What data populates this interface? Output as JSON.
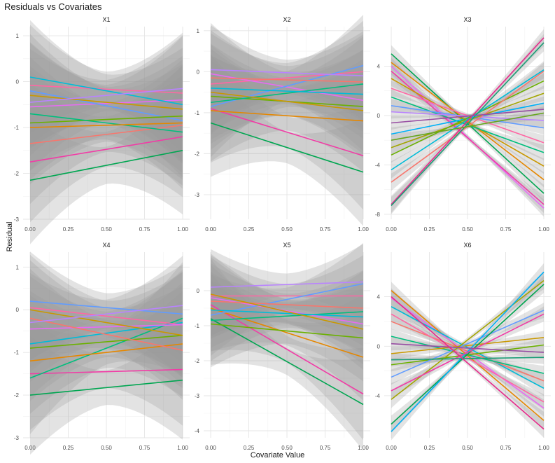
{
  "chart_data": {
    "type": "line",
    "title": "Residuals vs Covariates",
    "xlabel": "Covariate Value",
    "ylabel": "Residual",
    "colors": [
      "#F8766D",
      "#E58700",
      "#C99800",
      "#A3A500",
      "#6BB100",
      "#00BA38",
      "#00BF7D",
      "#00C0AF",
      "#00BCD8",
      "#00B0F6",
      "#619CFF",
      "#B983FF",
      "#E76BF3",
      "#FD61D1",
      "#FF67A4",
      "#4DAF4A",
      "#984EA3",
      "#E7298A",
      "#1B9E77",
      "#66A61E"
    ],
    "panels": [
      {
        "label": "X1",
        "xlim": [
          0,
          1
        ],
        "ylim": [
          -3.0,
          1.2
        ],
        "xticks": [
          0,
          0.25,
          0.5,
          0.75,
          1
        ],
        "xtick_labels": [
          "0.00",
          "0.25",
          "0.50",
          "0.75",
          "1.00"
        ],
        "yticks": [
          1,
          0,
          -1,
          -2,
          -3
        ],
        "ytick_labels": [
          "1",
          "0",
          "-1",
          "-2",
          "-3"
        ],
        "lines": [
          {
            "color": "#00A651",
            "y0": -2.15,
            "y1": -1.5,
            "band": 0.9
          },
          {
            "color": "#F13CA6",
            "y0": -1.75,
            "y1": -1.2,
            "band": 0.85
          },
          {
            "color": "#E76BF3",
            "y0": -0.55,
            "y1": -0.4,
            "band": 0.9
          },
          {
            "color": "#F8766D",
            "y0": -1.35,
            "y1": -0.95,
            "band": 0.85
          },
          {
            "color": "#FF67A4",
            "y0": -0.08,
            "y1": -0.25,
            "band": 0.85
          },
          {
            "color": "#619CFF",
            "y0": -0.2,
            "y1": -0.85,
            "band": 0.8
          },
          {
            "color": "#6BB100",
            "y0": -0.9,
            "y1": -0.75,
            "band": 0.8
          },
          {
            "color": "#00BCD8",
            "y0": 0.1,
            "y1": -0.5,
            "band": 0.8
          },
          {
            "color": "#C99800",
            "y0": -0.3,
            "y1": -0.6,
            "band": 0.75
          },
          {
            "color": "#00BF7D",
            "y0": -0.7,
            "y1": -1.1,
            "band": 0.8
          },
          {
            "color": "#B983FF",
            "y0": -0.45,
            "y1": -0.15,
            "band": 0.75
          },
          {
            "color": "#E58700",
            "y0": -1.0,
            "y1": -0.9,
            "band": 0.8
          }
        ]
      },
      {
        "label": "X2",
        "xlim": [
          0,
          1
        ],
        "ylim": [
          -3.6,
          1.1
        ],
        "xticks": [
          0,
          0.25,
          0.5,
          0.75,
          1
        ],
        "xtick_labels": [
          "0.00",
          "0.25",
          "0.50",
          "0.75",
          "1.00"
        ],
        "yticks": [
          1,
          0,
          -1,
          -2,
          -3
        ],
        "ytick_labels": [
          "1",
          "0",
          "-1",
          "-2",
          "-3"
        ],
        "lines": [
          {
            "color": "#00A651",
            "y0": -1.25,
            "y1": -2.45,
            "band": 0.85
          },
          {
            "color": "#F13CA6",
            "y0": -0.9,
            "y1": -2.05,
            "band": 0.85
          },
          {
            "color": "#FF67A4",
            "y0": -0.3,
            "y1": 0.0,
            "band": 0.8
          },
          {
            "color": "#E76BF3",
            "y0": -0.05,
            "y1": -0.7,
            "band": 0.8
          },
          {
            "color": "#619CFF",
            "y0": -0.85,
            "y1": 0.15,
            "band": 0.8
          },
          {
            "color": "#E58700",
            "y0": -0.95,
            "y1": -1.2,
            "band": 0.8
          },
          {
            "color": "#6BB100",
            "y0": -0.6,
            "y1": -0.85,
            "band": 0.75
          },
          {
            "color": "#00BF7D",
            "y0": -0.75,
            "y1": -0.3,
            "band": 0.75
          },
          {
            "color": "#F8766D",
            "y0": -0.15,
            "y1": -0.25,
            "band": 0.75
          },
          {
            "color": "#00BCD8",
            "y0": -0.4,
            "y1": -0.55,
            "band": 0.7
          },
          {
            "color": "#C99800",
            "y0": -0.5,
            "y1": -0.95,
            "band": 0.75
          },
          {
            "color": "#B983FF",
            "y0": 0.05,
            "y1": -0.1,
            "band": 0.7
          }
        ]
      },
      {
        "label": "X3",
        "xlim": [
          0,
          1
        ],
        "ylim": [
          -8.4,
          7.2
        ],
        "xticks": [
          0,
          0.25,
          0.5,
          0.75,
          1
        ],
        "xtick_labels": [
          "0.00",
          "0.25",
          "0.50",
          "0.75",
          "1.00"
        ],
        "yticks": [
          4,
          0,
          -4,
          -8
        ],
        "ytick_labels": [
          "4",
          "0",
          "-4",
          "-8"
        ],
        "lines": [
          {
            "color": "#00A651",
            "y0": 5.0,
            "y1": -6.3,
            "band": 0.45
          },
          {
            "color": "#E58700",
            "y0": 4.3,
            "y1": -5.2,
            "band": 0.4
          },
          {
            "color": "#E76BF3",
            "y0": 4.0,
            "y1": -7.5,
            "band": 0.45
          },
          {
            "color": "#F13CA6",
            "y0": 3.6,
            "y1": -7.2,
            "band": 0.45
          },
          {
            "color": "#C99800",
            "y0": 3.0,
            "y1": -4.1,
            "band": 0.4
          },
          {
            "color": "#FF67A4",
            "y0": 2.2,
            "y1": -2.2,
            "band": 0.4
          },
          {
            "color": "#00BF7D",
            "y0": 1.5,
            "y1": -3.0,
            "band": 0.4
          },
          {
            "color": "#619CFF",
            "y0": 0.8,
            "y1": -1.0,
            "band": 0.35
          },
          {
            "color": "#B983FF",
            "y0": 0.3,
            "y1": -0.4,
            "band": 0.35
          },
          {
            "color": "#00B0F6",
            "y0": -1.5,
            "y1": 1.0,
            "band": 0.35
          },
          {
            "color": "#A3A500",
            "y0": -2.6,
            "y1": 1.8,
            "band": 0.4
          },
          {
            "color": "#6BB100",
            "y0": -3.2,
            "y1": 2.8,
            "band": 0.4
          },
          {
            "color": "#F8766D",
            "y0": -5.4,
            "y1": 3.6,
            "band": 0.45
          },
          {
            "color": "#00BCD8",
            "y0": -4.4,
            "y1": 3.7,
            "band": 0.45
          },
          {
            "color": "#E7298A",
            "y0": -7.2,
            "y1": 6.3,
            "band": 0.45
          },
          {
            "color": "#1B9E77",
            "y0": -7.3,
            "y1": 5.9,
            "band": 0.45
          },
          {
            "color": "#984EA3",
            "y0": -0.6,
            "y1": 0.5,
            "band": 0.35
          },
          {
            "color": "#66A61E",
            "y0": -2.0,
            "y1": 0.2,
            "band": 0.35
          }
        ]
      },
      {
        "label": "X4",
        "xlim": [
          0,
          1
        ],
        "ylim": [
          -3.0,
          1.35
        ],
        "xticks": [
          0,
          0.25,
          0.5,
          0.75,
          1
        ],
        "xtick_labels": [
          "0.00",
          "0.25",
          "0.50",
          "0.75",
          "1.00"
        ],
        "yticks": [
          1,
          0,
          -1,
          -2,
          -3
        ],
        "ytick_labels": [
          "1",
          "0",
          "-1",
          "-2",
          "-3"
        ],
        "lines": [
          {
            "color": "#00A651",
            "y0": -2.0,
            "y1": -1.65,
            "band": 0.9
          },
          {
            "color": "#F13CA6",
            "y0": -1.5,
            "y1": -1.4,
            "band": 0.85
          },
          {
            "color": "#00BF7D",
            "y0": -1.6,
            "y1": -0.2,
            "band": 0.85
          },
          {
            "color": "#00BCD8",
            "y0": -0.8,
            "y1": -0.3,
            "band": 0.8
          },
          {
            "color": "#FF67A4",
            "y0": 0.05,
            "y1": -0.35,
            "band": 0.8
          },
          {
            "color": "#E76BF3",
            "y0": -0.45,
            "y1": -0.35,
            "band": 0.8
          },
          {
            "color": "#619CFF",
            "y0": 0.2,
            "y1": -0.1,
            "band": 0.75
          },
          {
            "color": "#E58700",
            "y0": -1.2,
            "y1": -0.8,
            "band": 0.8
          },
          {
            "color": "#6BB100",
            "y0": -0.9,
            "y1": -0.6,
            "band": 0.8
          },
          {
            "color": "#F8766D",
            "y0": -0.2,
            "y1": -0.95,
            "band": 0.75
          },
          {
            "color": "#C99800",
            "y0": 0.0,
            "y1": -0.6,
            "band": 0.75
          },
          {
            "color": "#B983FF",
            "y0": -0.3,
            "y1": 0.1,
            "band": 0.75
          }
        ]
      },
      {
        "label": "X5",
        "xlim": [
          0,
          1
        ],
        "ylim": [
          -4.2,
          1.1
        ],
        "xticks": [
          0,
          0.25,
          0.5,
          0.75,
          1
        ],
        "xtick_labels": [
          "0.00",
          "0.25",
          "0.50",
          "0.75",
          "1.00"
        ],
        "yticks": [
          0,
          -1,
          -2,
          -3,
          -4
        ],
        "ytick_labels": [
          "0",
          "-1",
          "-2",
          "-3",
          "-4"
        ],
        "lines": [
          {
            "color": "#00A651",
            "y0": -0.8,
            "y1": -3.25,
            "band": 0.85
          },
          {
            "color": "#F13CA6",
            "y0": -0.4,
            "y1": -2.95,
            "band": 0.85
          },
          {
            "color": "#E58700",
            "y0": -0.5,
            "y1": -1.9,
            "band": 0.8
          },
          {
            "color": "#6BB100",
            "y0": -0.95,
            "y1": -1.35,
            "band": 0.8
          },
          {
            "color": "#E76BF3",
            "y0": -0.2,
            "y1": -0.95,
            "band": 0.75
          },
          {
            "color": "#FF67A4",
            "y0": -0.15,
            "y1": -0.15,
            "band": 0.75
          },
          {
            "color": "#619CFF",
            "y0": -0.7,
            "y1": 0.2,
            "band": 0.75
          },
          {
            "color": "#00BF7D",
            "y0": -0.85,
            "y1": -0.6,
            "band": 0.75
          },
          {
            "color": "#F8766D",
            "y0": -0.3,
            "y1": -0.5,
            "band": 0.7
          },
          {
            "color": "#00BCD8",
            "y0": -0.55,
            "y1": -0.75,
            "band": 0.7
          },
          {
            "color": "#C99800",
            "y0": -0.1,
            "y1": -1.1,
            "band": 0.75
          },
          {
            "color": "#B983FF",
            "y0": 0.1,
            "y1": 0.25,
            "band": 0.7
          }
        ]
      },
      {
        "label": "X6",
        "xlim": [
          0,
          1
        ],
        "ylim": [
          -7.4,
          7.6
        ],
        "xticks": [
          0,
          0.25,
          0.5,
          0.75,
          1
        ],
        "xtick_labels": [
          "0.00",
          "0.25",
          "0.50",
          "0.75",
          "1.00"
        ],
        "yticks": [
          4,
          0,
          -4
        ],
        "ytick_labels": [
          "4",
          "0",
          "-4"
        ],
        "lines": [
          {
            "color": "#E58700",
            "y0": 4.5,
            "y1": -6.0,
            "band": 0.45
          },
          {
            "color": "#E76BF3",
            "y0": 3.9,
            "y1": -5.0,
            "band": 0.45
          },
          {
            "color": "#00BCD8",
            "y0": 3.2,
            "y1": -3.4,
            "band": 0.4
          },
          {
            "color": "#F8766D",
            "y0": 2.0,
            "y1": -2.8,
            "band": 0.4
          },
          {
            "color": "#00BF7D",
            "y0": 0.8,
            "y1": -2.2,
            "band": 0.4
          },
          {
            "color": "#C99800",
            "y0": -0.6,
            "y1": 0.7,
            "band": 0.35
          },
          {
            "color": "#6BB100",
            "y0": -1.5,
            "y1": 0.1,
            "band": 0.35
          },
          {
            "color": "#FF67A4",
            "y0": 2.6,
            "y1": -4.5,
            "band": 0.4
          },
          {
            "color": "#619CFF",
            "y0": -2.5,
            "y1": 2.9,
            "band": 0.4
          },
          {
            "color": "#A3A500",
            "y0": -4.3,
            "y1": 5.3,
            "band": 0.45
          },
          {
            "color": "#00A651",
            "y0": -6.3,
            "y1": 5.0,
            "band": 0.45
          },
          {
            "color": "#00B0F6",
            "y0": -6.9,
            "y1": 6.0,
            "band": 0.45
          },
          {
            "color": "#F13CA6",
            "y0": -3.6,
            "y1": 2.6,
            "band": 0.4
          },
          {
            "color": "#984EA3",
            "y0": 0.2,
            "y1": -0.5,
            "band": 0.35
          },
          {
            "color": "#1B9E77",
            "y0": -1.1,
            "y1": -0.9,
            "band": 0.35
          },
          {
            "color": "#E7298A",
            "y0": 4.0,
            "y1": -6.7,
            "band": 0.45
          }
        ]
      }
    ]
  }
}
